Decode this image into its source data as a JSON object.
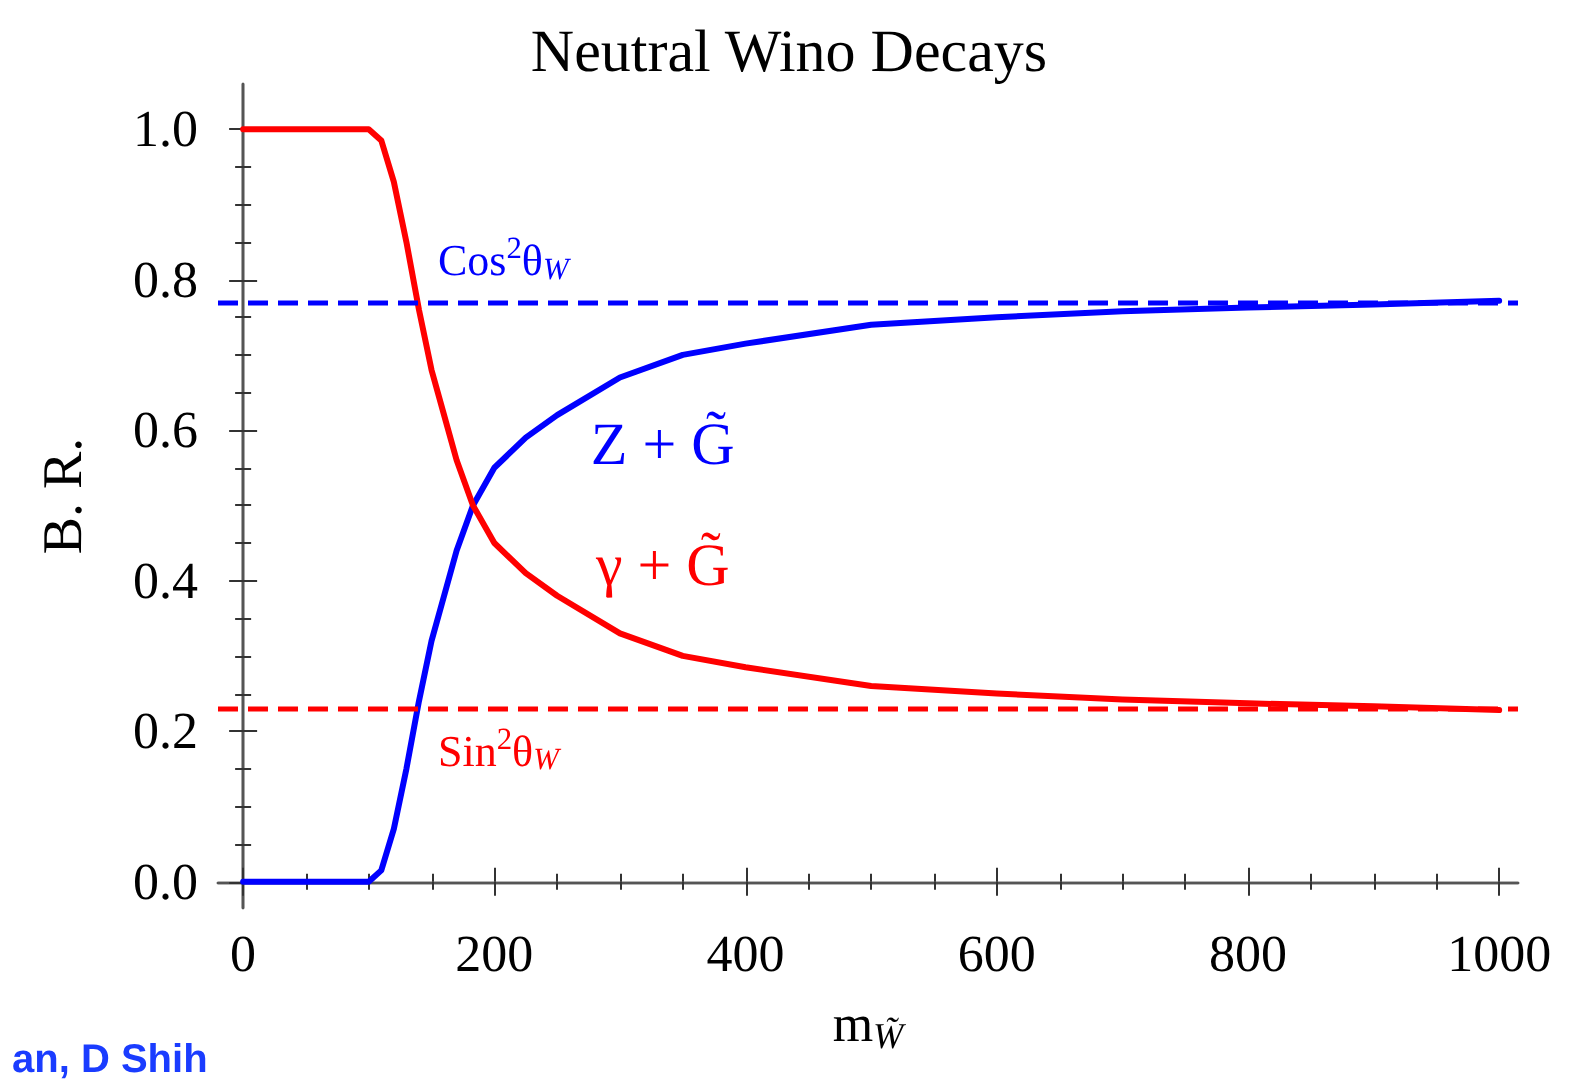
{
  "chart_data": {
    "type": "line",
    "title": "Neutral Wino Decays",
    "xlabel": "m$_{W̃}$",
    "ylabel": "B. R.",
    "x": [
      0,
      50,
      100,
      110,
      120,
      130,
      140,
      150,
      160,
      170,
      183,
      200,
      225,
      250,
      300,
      350,
      400,
      500,
      600,
      700,
      800,
      900,
      1000
    ],
    "series": [
      {
        "name": "Z + G̃",
        "color": "#0000ff",
        "values": [
          0,
          0,
          0,
          0.015,
          0.07,
          0.15,
          0.24,
          0.32,
          0.38,
          0.44,
          0.5,
          0.55,
          0.59,
          0.62,
          0.67,
          0.7,
          0.715,
          0.74,
          0.75,
          0.758,
          0.763,
          0.767,
          0.772
        ]
      },
      {
        "name": "γ + G̃",
        "color": "#ff0000",
        "values": [
          1,
          1,
          1,
          0.985,
          0.93,
          0.85,
          0.76,
          0.68,
          0.62,
          0.56,
          0.5,
          0.45,
          0.41,
          0.38,
          0.33,
          0.3,
          0.285,
          0.26,
          0.25,
          0.242,
          0.237,
          0.233,
          0.228
        ]
      }
    ],
    "xlim": [
      -20,
      1015
    ],
    "ylim": [
      -0.035,
      1.06
    ],
    "xticks": [
      0,
      200,
      400,
      600,
      800,
      1000
    ],
    "yticks": [
      {
        "value": 0,
        "label": "0.0"
      },
      {
        "value": 0.2,
        "label": "0.2"
      },
      {
        "value": 0.4,
        "label": "0.4"
      },
      {
        "value": 0.6,
        "label": "0.6"
      },
      {
        "value": 0.8,
        "label": "0.8"
      },
      {
        "value": 1,
        "label": "1.0"
      }
    ],
    "ref_lines": [
      {
        "axis": "y",
        "value": 0.77,
        "label": "Cos$^{2}$θ$_{W}$",
        "color": "#0000ff",
        "line_style": "dashed"
      },
      {
        "axis": "y",
        "value": 0.23,
        "label": "Sin$^{2}$θ$_{W}$",
        "color": "#ff0000",
        "line_style": "dashed"
      }
    ],
    "annotations": [
      "an, D Shih"
    ],
    "grid": false,
    "legend": false,
    "marker": "none",
    "line_style": "solid"
  }
}
